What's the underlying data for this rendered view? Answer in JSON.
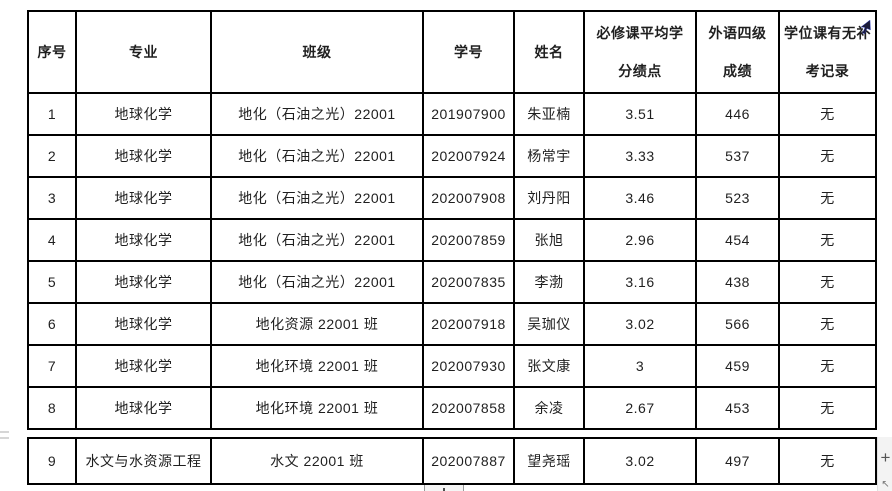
{
  "page": {
    "background": "#ffffff",
    "border_color": "#000000",
    "text_color": "#1f1f1f"
  },
  "table": {
    "columns": [
      {
        "key": "index",
        "label": "序号"
      },
      {
        "key": "major",
        "label": "专业"
      },
      {
        "key": "class",
        "label": "班级"
      },
      {
        "key": "student_id",
        "label": "学号"
      },
      {
        "key": "name",
        "label": "姓名"
      },
      {
        "key": "gpa",
        "label": "必修课平均学\n分绩点"
      },
      {
        "key": "cet4",
        "label": "外语四级\n成绩"
      },
      {
        "key": "makeup",
        "label": "学位课有无补\n考记录"
      }
    ],
    "rows": [
      [
        "1",
        "地球化学",
        "地化（石油之光）22001",
        "201907900",
        "朱亚楠",
        "3.51",
        "446",
        "无"
      ],
      [
        "2",
        "地球化学",
        "地化（石油之光）22001",
        "202007924",
        "杨常宇",
        "3.33",
        "537",
        "无"
      ],
      [
        "3",
        "地球化学",
        "地化（石油之光）22001",
        "202007908",
        "刘丹阳",
        "3.46",
        "523",
        "无"
      ],
      [
        "4",
        "地球化学",
        "地化（石油之光）22001",
        "202007859",
        "张旭",
        "2.96",
        "454",
        "无"
      ],
      [
        "5",
        "地球化学",
        "地化（石油之光）22001",
        "202007835",
        "李渤",
        "3.16",
        "438",
        "无"
      ],
      [
        "6",
        "地球化学",
        "地化资源 22001 班",
        "202007918",
        "吴珈仪",
        "3.02",
        "566",
        "无"
      ],
      [
        "7",
        "地球化学",
        "地化环境 22001 班",
        "202007930",
        "张文康",
        "3",
        "459",
        "无"
      ],
      [
        "8",
        "地球化学",
        "地化环境 22001 班",
        "202007858",
        "余凌",
        "2.67",
        "453",
        "无"
      ]
    ],
    "continued_rows": [
      [
        "9",
        "水文与水资源工程",
        "水文 22001 班",
        "202007887",
        "望尧瑶",
        "3.02",
        "497",
        "无"
      ]
    ]
  },
  "controls": {
    "add_column_glyph": "+",
    "resize_glyph": "↖"
  }
}
